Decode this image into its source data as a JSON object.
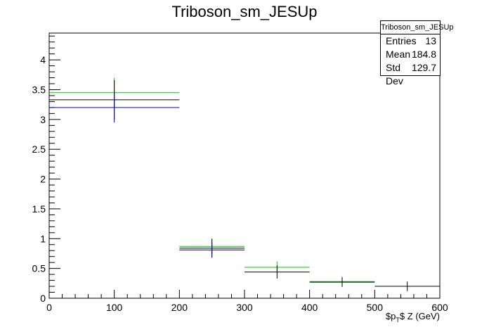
{
  "chart_data": {
    "type": "histogram",
    "title": "Triboson_sm_JESUp",
    "xlabel": "$p_T$ Z (GeV)",
    "xlabel_parts": {
      "pre": "$p",
      "sub": "T",
      "post": "$ Z (GeV)"
    },
    "ylabel": "",
    "xlim": [
      0,
      600
    ],
    "ylim": [
      0,
      4.45
    ],
    "x_ticks": [
      0,
      100,
      200,
      300,
      400,
      500,
      600
    ],
    "y_ticks": [
      0,
      0.5,
      1,
      1.5,
      2,
      2.5,
      3,
      3.5,
      4
    ],
    "bins": [
      [
        0,
        200
      ],
      [
        200,
        300
      ],
      [
        300,
        400
      ],
      [
        400,
        500
      ],
      [
        500,
        600
      ]
    ],
    "grid": false,
    "series": [
      {
        "color": "#00cc00",
        "values": [
          3.45,
          0.87,
          0.52,
          0.28,
          null
        ],
        "errors": [
          0.25,
          0.12,
          0.1,
          0.08,
          null
        ]
      },
      {
        "color": "#000000",
        "values": [
          3.33,
          0.84,
          0.44,
          0.27,
          0.2
        ],
        "errors": [
          0.33,
          0.16,
          0.11,
          0.08,
          0.08
        ]
      },
      {
        "color": "#0000cc",
        "values": [
          3.2,
          0.81,
          null,
          null,
          null
        ],
        "errors": [
          0.25,
          0.12,
          null,
          null,
          null
        ]
      }
    ]
  },
  "stats_box": {
    "title": "Triboson_sm_JESUp",
    "rows": [
      {
        "label": "Entries",
        "value": "13"
      },
      {
        "label": "Mean",
        "value": "184.8"
      },
      {
        "label": "Std Dev",
        "value": "129.7"
      }
    ]
  }
}
